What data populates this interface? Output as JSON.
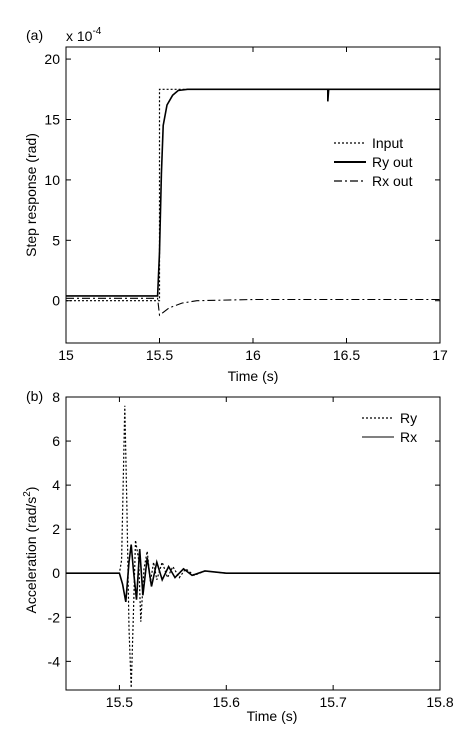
{
  "chart_data": [
    {
      "panel": "(a)",
      "type": "line",
      "xlabel": "Time (s)",
      "ylabel": "Step response (rad)",
      "y_multiplier": "x 10",
      "y_exponent": "-4",
      "xlim": [
        15,
        17
      ],
      "ylim": [
        -3.5,
        21
      ],
      "x_ticks": [
        "15",
        "15.5",
        "16",
        "16.5",
        "17"
      ],
      "y_ticks": [
        "0",
        "5",
        "10",
        "15",
        "20"
      ],
      "legend_position": "right-middle",
      "series": [
        {
          "name": "Input",
          "style": "dotted",
          "points": [
            [
              15,
              0
            ],
            [
              15.5,
              0
            ],
            [
              15.5,
              17.5
            ],
            [
              17,
              17.5
            ]
          ]
        },
        {
          "name": "Ry out",
          "style": "solid",
          "points": [
            [
              15,
              0.4
            ],
            [
              15.49,
              0.4
            ],
            [
              15.5,
              4
            ],
            [
              15.51,
              10.5
            ],
            [
              15.52,
              14.5
            ],
            [
              15.54,
              16.2
            ],
            [
              15.57,
              17
            ],
            [
              15.6,
              17.4
            ],
            [
              15.65,
              17.5
            ],
            [
              16.4,
              17.5
            ],
            [
              16.4,
              16.5
            ],
            [
              16.405,
              17.5
            ],
            [
              17,
              17.5
            ]
          ]
        },
        {
          "name": "Rx out",
          "style": "dash-dot",
          "points": [
            [
              15,
              0.2
            ],
            [
              15.49,
              0.2
            ],
            [
              15.5,
              -1.2
            ],
            [
              15.55,
              -0.6
            ],
            [
              15.62,
              -0.2
            ],
            [
              15.7,
              0
            ],
            [
              16,
              0.1
            ],
            [
              17,
              0.1
            ]
          ]
        }
      ]
    },
    {
      "panel": "(b)",
      "type": "line",
      "xlabel": "Time (s)",
      "ylabel": "Acceleration (rad/s",
      "ylabel_sup": "2",
      "ylabel_end": ")",
      "xlim": [
        15.45,
        15.8
      ],
      "ylim": [
        -5.3,
        8
      ],
      "x_ticks": [
        "15.5",
        "15.6",
        "15.7",
        "15.8"
      ],
      "y_ticks": [
        "-4",
        "-2",
        "0",
        "2",
        "4",
        "6",
        "8"
      ],
      "legend_position": "top-right",
      "series": [
        {
          "name": "Ry",
          "style": "dotted",
          "points": [
            [
              15.45,
              0
            ],
            [
              15.5,
              0
            ],
            [
              15.502,
              0.6
            ],
            [
              15.505,
              7.6
            ],
            [
              15.507,
              3
            ],
            [
              15.509,
              -2.5
            ],
            [
              15.511,
              -5.2
            ],
            [
              15.513,
              -2
            ],
            [
              15.515,
              1.5
            ],
            [
              15.518,
              0.6
            ],
            [
              15.52,
              -2.2
            ],
            [
              15.523,
              0.2
            ],
            [
              15.526,
              1
            ],
            [
              15.529,
              -0.4
            ],
            [
              15.532,
              0.5
            ],
            [
              15.535,
              -0.3
            ],
            [
              15.54,
              0.5
            ],
            [
              15.545,
              -0.2
            ],
            [
              15.55,
              0.3
            ],
            [
              15.556,
              -0.2
            ],
            [
              15.562,
              0.2
            ],
            [
              15.57,
              -0.1
            ],
            [
              15.58,
              0.1
            ],
            [
              15.6,
              0
            ],
            [
              15.8,
              0
            ]
          ]
        },
        {
          "name": "Rx",
          "style": "solid",
          "points": [
            [
              15.45,
              0
            ],
            [
              15.5,
              0
            ],
            [
              15.503,
              -0.5
            ],
            [
              15.506,
              -1.3
            ],
            [
              15.509,
              0.5
            ],
            [
              15.511,
              1.3
            ],
            [
              15.513,
              0.2
            ],
            [
              15.516,
              -1.2
            ],
            [
              15.519,
              1.1
            ],
            [
              15.522,
              -1
            ],
            [
              15.526,
              0.7
            ],
            [
              15.53,
              -0.6
            ],
            [
              15.535,
              0.5
            ],
            [
              15.54,
              -0.3
            ],
            [
              15.546,
              0.3
            ],
            [
              15.552,
              -0.2
            ],
            [
              15.56,
              0.2
            ],
            [
              15.568,
              -0.1
            ],
            [
              15.58,
              0.1
            ],
            [
              15.6,
              0
            ],
            [
              15.8,
              0
            ]
          ]
        }
      ]
    }
  ]
}
